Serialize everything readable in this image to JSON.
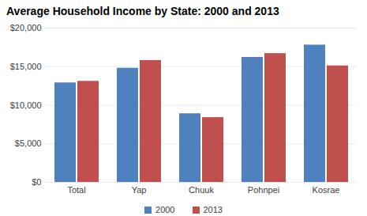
{
  "chart_data": {
    "type": "bar",
    "title": "Average Household Income by State: 2000 and 2013",
    "categories": [
      "Total",
      "Yap",
      "Chuuk",
      "Pohnpei",
      "Kosrae"
    ],
    "series": [
      {
        "name": "2000",
        "color": "#4f81bd",
        "values": [
          12900,
          14800,
          8900,
          16200,
          17800
        ]
      },
      {
        "name": "2013",
        "color": "#c0504d",
        "values": [
          13100,
          15800,
          8400,
          16700,
          15100
        ]
      }
    ],
    "ylim": [
      0,
      20000
    ],
    "yticks": [
      {
        "value": 0,
        "label": "$0"
      },
      {
        "value": 5000,
        "label": "$5,000"
      },
      {
        "value": 10000,
        "label": "$10,000"
      },
      {
        "value": 15000,
        "label": "$15,000"
      },
      {
        "value": 20000,
        "label": "$20,000"
      }
    ],
    "grid": true,
    "legend": "bottom"
  }
}
